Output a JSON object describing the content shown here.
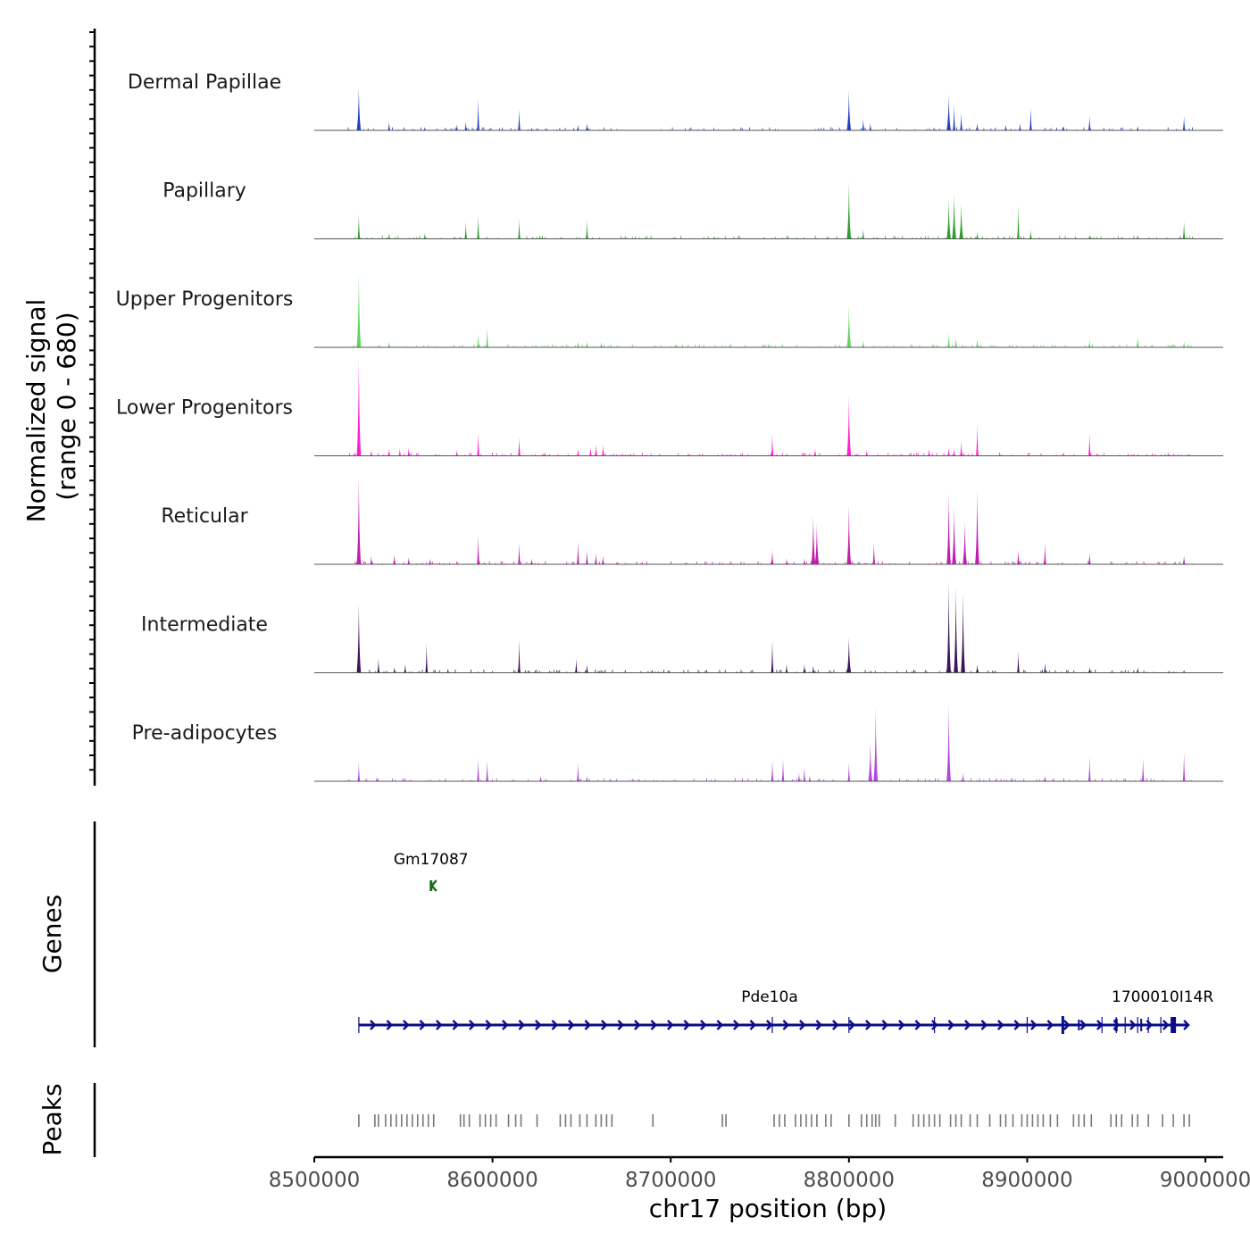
{
  "chart_data": {
    "type": "area",
    "title": "",
    "chromosome": "chr17",
    "xlabel": "chr17 position (bp)",
    "ylabel": "Normalized signal",
    "ylabel_range": "(range 0 - 680)",
    "xlim": [
      8500000,
      9010000
    ],
    "ylim": [
      0,
      680
    ],
    "x_ticks": [
      8500000,
      8600000,
      8700000,
      8800000,
      8900000,
      9000000
    ],
    "x_tick_labels": [
      "8500000",
      "8600000",
      "8700000",
      "8800000",
      "8900000",
      "9000000"
    ],
    "series": [
      {
        "name": "Dermal Papillae",
        "color": "#1f3fc6",
        "peaks": [
          [
            8525000,
            300
          ],
          [
            8542000,
            60
          ],
          [
            8562000,
            25
          ],
          [
            8580000,
            40
          ],
          [
            8585000,
            60
          ],
          [
            8592000,
            220
          ],
          [
            8615000,
            150
          ],
          [
            8622000,
            20
          ],
          [
            8648000,
            40
          ],
          [
            8653000,
            50
          ],
          [
            8800000,
            280
          ],
          [
            8808000,
            80
          ],
          [
            8812000,
            50
          ],
          [
            8856000,
            250
          ],
          [
            8859000,
            180
          ],
          [
            8863000,
            120
          ],
          [
            8872000,
            50
          ],
          [
            8888000,
            40
          ],
          [
            8896000,
            50
          ],
          [
            8902000,
            160
          ],
          [
            8920000,
            30
          ],
          [
            8935000,
            100
          ],
          [
            8962000,
            30
          ],
          [
            8988000,
            100
          ]
        ]
      },
      {
        "name": "Papillary",
        "color": "#2ca02c",
        "peaks": [
          [
            8525000,
            170
          ],
          [
            8542000,
            40
          ],
          [
            8562000,
            40
          ],
          [
            8585000,
            120
          ],
          [
            8592000,
            160
          ],
          [
            8615000,
            140
          ],
          [
            8653000,
            130
          ],
          [
            8800000,
            400
          ],
          [
            8808000,
            70
          ],
          [
            8856000,
            280
          ],
          [
            8859000,
            320
          ],
          [
            8863000,
            250
          ],
          [
            8872000,
            50
          ],
          [
            8895000,
            230
          ],
          [
            8902000,
            60
          ],
          [
            8935000,
            30
          ],
          [
            8962000,
            30
          ],
          [
            8988000,
            120
          ]
        ]
      },
      {
        "name": "Upper Progenitors",
        "color": "#5ed65e",
        "peaks": [
          [
            8525000,
            520
          ],
          [
            8542000,
            40
          ],
          [
            8592000,
            90
          ],
          [
            8597000,
            140
          ],
          [
            8648000,
            40
          ],
          [
            8653000,
            40
          ],
          [
            8661000,
            40
          ],
          [
            8800000,
            300
          ],
          [
            8808000,
            50
          ],
          [
            8856000,
            100
          ],
          [
            8860000,
            70
          ],
          [
            8872000,
            60
          ],
          [
            8935000,
            50
          ],
          [
            8962000,
            80
          ],
          [
            8988000,
            40
          ]
        ]
      },
      {
        "name": "Lower Progenitors",
        "color": "#ff1fd0",
        "peaks": [
          [
            8525000,
            680
          ],
          [
            8532000,
            40
          ],
          [
            8542000,
            50
          ],
          [
            8548000,
            50
          ],
          [
            8553000,
            60
          ],
          [
            8580000,
            40
          ],
          [
            8592000,
            160
          ],
          [
            8615000,
            130
          ],
          [
            8648000,
            50
          ],
          [
            8655000,
            60
          ],
          [
            8658000,
            80
          ],
          [
            8662000,
            80
          ],
          [
            8757000,
            150
          ],
          [
            8781000,
            50
          ],
          [
            8800000,
            420
          ],
          [
            8810000,
            40
          ],
          [
            8845000,
            50
          ],
          [
            8856000,
            60
          ],
          [
            8859000,
            50
          ],
          [
            8863000,
            100
          ],
          [
            8872000,
            220
          ],
          [
            8935000,
            150
          ]
        ]
      },
      {
        "name": "Reticular",
        "color": "#c21db0",
        "peaks": [
          [
            8525000,
            600
          ],
          [
            8532000,
            60
          ],
          [
            8545000,
            70
          ],
          [
            8553000,
            50
          ],
          [
            8565000,
            40
          ],
          [
            8592000,
            200
          ],
          [
            8615000,
            150
          ],
          [
            8622000,
            40
          ],
          [
            8648000,
            160
          ],
          [
            8653000,
            100
          ],
          [
            8658000,
            80
          ],
          [
            8662000,
            60
          ],
          [
            8757000,
            100
          ],
          [
            8765000,
            40
          ],
          [
            8775000,
            40
          ],
          [
            8780000,
            340
          ],
          [
            8782000,
            280
          ],
          [
            8800000,
            420
          ],
          [
            8814000,
            150
          ],
          [
            8856000,
            500
          ],
          [
            8859000,
            400
          ],
          [
            8865000,
            300
          ],
          [
            8872000,
            520
          ],
          [
            8895000,
            100
          ],
          [
            8910000,
            150
          ],
          [
            8935000,
            80
          ],
          [
            8988000,
            60
          ]
        ]
      },
      {
        "name": "Intermediate",
        "color": "#3d1458",
        "peaks": [
          [
            8525000,
            480
          ],
          [
            8536000,
            100
          ],
          [
            8545000,
            40
          ],
          [
            8551000,
            60
          ],
          [
            8563000,
            200
          ],
          [
            8575000,
            30
          ],
          [
            8615000,
            230
          ],
          [
            8647000,
            100
          ],
          [
            8653000,
            60
          ],
          [
            8757000,
            230
          ],
          [
            8765000,
            60
          ],
          [
            8775000,
            60
          ],
          [
            8780000,
            50
          ],
          [
            8800000,
            250
          ],
          [
            8856000,
            640
          ],
          [
            8860000,
            600
          ],
          [
            8864000,
            560
          ],
          [
            8872000,
            60
          ],
          [
            8895000,
            150
          ],
          [
            8910000,
            70
          ],
          [
            8935000,
            40
          ],
          [
            8962000,
            40
          ],
          [
            8988000,
            20
          ]
        ]
      },
      {
        "name": "Pre-adipocytes",
        "color": "#b147e0",
        "peaks": [
          [
            8525000,
            130
          ],
          [
            8535000,
            30
          ],
          [
            8592000,
            160
          ],
          [
            8597000,
            150
          ],
          [
            8627000,
            40
          ],
          [
            8648000,
            130
          ],
          [
            8653000,
            40
          ],
          [
            8757000,
            150
          ],
          [
            8763000,
            160
          ],
          [
            8772000,
            60
          ],
          [
            8775000,
            100
          ],
          [
            8778000,
            40
          ],
          [
            8800000,
            130
          ],
          [
            8812000,
            280
          ],
          [
            8815000,
            520
          ],
          [
            8856000,
            550
          ],
          [
            8864000,
            60
          ],
          [
            8910000,
            40
          ],
          [
            8935000,
            170
          ],
          [
            8965000,
            160
          ],
          [
            8988000,
            200
          ]
        ]
      }
    ],
    "genes_label": "Genes",
    "genes": [
      {
        "name": "Gm17087",
        "start": 8565500,
        "end": 8567500,
        "strand": "-",
        "color": "#1a6b1a"
      },
      {
        "name": "Pde10a",
        "start": 8525000,
        "end": 8990000,
        "strand": "+",
        "color": "#0b0b8c"
      },
      {
        "name": "1700010I14R",
        "start": 8990000,
        "end": 9010000,
        "strand": "+",
        "color": "#0b0b8c"
      }
    ],
    "peaks_label": "Peaks",
    "peak_positions": [
      8525000,
      8534000,
      8536000,
      8540000,
      8543000,
      8546000,
      8549000,
      8552000,
      8555000,
      8558000,
      8561000,
      8564000,
      8567000,
      8582000,
      8584000,
      8587000,
      8593000,
      8596000,
      8599000,
      8602000,
      8609000,
      8613000,
      8616000,
      8625000,
      8638000,
      8641000,
      8644000,
      8649000,
      8653000,
      8658000,
      8661000,
      8664000,
      8667000,
      8690000,
      8729000,
      8731000,
      8758000,
      8761000,
      8764000,
      8770000,
      8773000,
      8776000,
      8779000,
      8782000,
      8787000,
      8790000,
      8800000,
      8807000,
      8810000,
      8813000,
      8815000,
      8817000,
      8826000,
      8836000,
      8839000,
      8842000,
      8845000,
      8848000,
      8851000,
      8857000,
      8860000,
      8863000,
      8868000,
      8872000,
      8879000,
      8885000,
      8888000,
      8892000,
      8897000,
      8900000,
      8903000,
      8906000,
      8909000,
      8913000,
      8917000,
      8926000,
      8929000,
      8932000,
      8936000,
      8947000,
      8950000,
      8953000,
      8959000,
      8962000,
      8968000,
      8976000,
      8982000,
      8988000,
      8991000
    ]
  }
}
